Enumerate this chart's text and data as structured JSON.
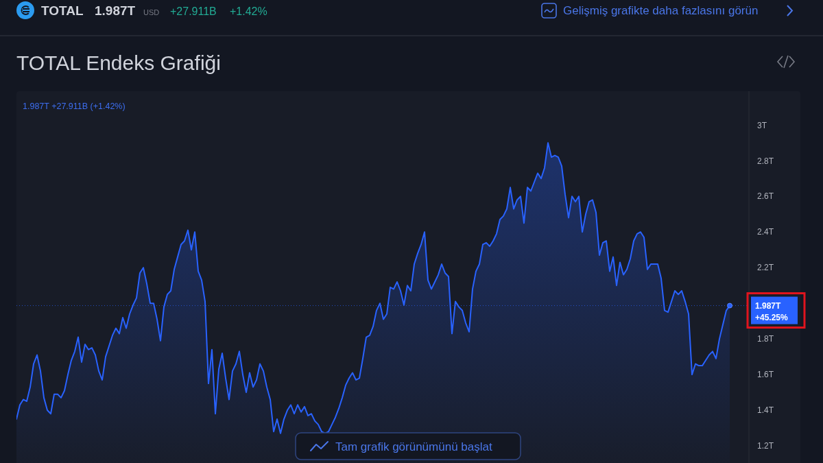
{
  "chart_data": {
    "type": "area",
    "title": "TOTAL Endeks Grafiği",
    "categories": [
      null,
      null,
      null,
      null,
      null,
      null,
      null,
      null,
      null,
      null,
      null,
      null,
      null,
      null,
      null,
      null,
      null,
      null,
      null,
      null,
      null,
      null,
      null,
      null,
      null,
      null,
      null,
      null,
      null,
      null,
      null,
      null,
      null,
      null,
      null,
      null,
      null,
      null,
      null,
      null,
      null,
      null,
      null,
      null,
      null,
      null,
      null,
      null,
      null,
      null,
      null,
      null,
      null,
      null,
      null,
      null,
      null,
      null,
      null,
      null,
      null,
      null,
      null,
      null,
      null,
      null,
      null,
      null,
      null,
      null,
      null,
      null,
      null,
      null,
      null,
      null,
      null,
      null,
      null,
      null,
      null,
      null,
      null,
      null,
      null,
      null,
      null,
      null,
      null,
      null,
      null,
      null,
      null,
      null,
      null,
      null,
      null,
      null,
      null,
      null,
      null,
      null,
      null,
      null,
      null,
      null,
      null,
      null,
      null,
      null,
      null,
      null,
      null,
      null,
      null,
      null,
      null,
      null,
      null,
      null,
      null,
      null,
      null,
      null,
      null,
      null,
      null,
      null,
      null,
      null,
      null,
      null,
      null,
      null,
      null,
      null,
      null,
      null,
      null,
      null,
      null,
      null,
      null,
      null,
      null,
      null,
      null,
      null,
      null,
      null,
      null,
      null,
      null,
      null,
      null,
      null,
      null,
      null,
      null,
      null,
      null,
      null,
      null,
      null,
      null,
      null,
      null,
      null,
      null,
      null,
      null,
      null,
      null,
      null,
      null,
      null,
      null,
      null,
      null,
      null,
      null,
      null,
      null,
      null,
      null,
      null,
      null,
      null,
      null,
      null,
      null,
      null,
      null,
      null,
      null,
      null,
      null,
      null,
      null,
      null,
      null,
      null,
      null,
      null,
      null,
      null,
      null,
      null,
      null
    ],
    "series": [
      {
        "color": "#2962ff",
        "values": [
          1.35,
          1.43,
          1.46,
          1.45,
          1.53,
          1.66,
          1.71,
          1.62,
          1.47,
          1.4,
          1.38,
          1.49,
          1.49,
          1.47,
          1.51,
          1.6,
          1.68,
          1.73,
          1.81,
          1.67,
          1.77,
          1.74,
          1.75,
          1.71,
          1.62,
          1.57,
          1.7,
          1.76,
          1.82,
          1.86,
          1.83,
          1.92,
          1.86,
          1.94,
          1.99,
          2.03,
          2.17,
          2.2,
          2.11,
          2.0,
          2.0,
          1.91,
          1.79,
          1.98,
          2.05,
          2.07,
          2.19,
          2.26,
          2.33,
          2.35,
          2.41,
          2.3,
          2.4,
          2.18,
          2.13,
          2.01,
          1.55,
          1.74,
          1.38,
          1.63,
          1.72,
          1.58,
          1.46,
          1.62,
          1.66,
          1.73,
          1.6,
          1.5,
          1.61,
          1.53,
          1.57,
          1.66,
          1.62,
          1.53,
          1.46,
          1.28,
          1.35,
          1.27,
          1.35,
          1.4,
          1.43,
          1.38,
          1.43,
          1.39,
          1.42,
          1.37,
          1.38,
          1.34,
          1.32,
          1.28,
          1.27,
          1.28,
          1.32,
          1.36,
          1.41,
          1.47,
          1.54,
          1.58,
          1.61,
          1.57,
          1.58,
          1.69,
          1.81,
          1.82,
          1.87,
          1.96,
          2.0,
          1.91,
          1.94,
          2.09,
          2.08,
          2.12,
          2.07,
          1.99,
          2.1,
          2.07,
          2.22,
          2.28,
          2.33,
          2.4,
          2.13,
          2.08,
          2.12,
          2.16,
          2.22,
          2.17,
          2.15,
          1.83,
          2.01,
          1.98,
          1.96,
          1.89,
          1.84,
          2.08,
          2.18,
          2.22,
          2.33,
          2.34,
          2.32,
          2.35,
          2.39,
          2.47,
          2.49,
          2.53,
          2.65,
          2.53,
          2.58,
          2.6,
          2.45,
          2.65,
          2.63,
          2.68,
          2.73,
          2.7,
          2.76,
          2.9,
          2.82,
          2.83,
          2.82,
          2.77,
          2.61,
          2.48,
          2.6,
          2.57,
          2.6,
          2.4,
          2.5,
          2.57,
          2.58,
          2.51,
          2.27,
          2.34,
          2.35,
          2.18,
          2.26,
          2.1,
          2.23,
          2.16,
          2.19,
          2.25,
          2.35,
          2.39,
          2.4,
          2.37,
          2.19,
          2.22,
          2.22,
          2.22,
          2.14,
          1.96,
          1.95,
          2.01,
          2.07,
          2.05,
          2.07,
          2.01,
          1.94,
          1.6,
          1.66,
          1.65,
          1.65,
          1.68,
          1.71,
          1.73,
          1.69,
          1.8,
          1.88,
          1.96,
          1.987
        ]
      },
      {
        "type": "scatter",
        "color": "#2962ff",
        "marker": "circle",
        "values": [
          null,
          null,
          null,
          null,
          null,
          null,
          null,
          null,
          null,
          null,
          null,
          null,
          null,
          null,
          null,
          null,
          null,
          null,
          null,
          null,
          null,
          null,
          null,
          null,
          null,
          null,
          null,
          null,
          null,
          null,
          null,
          null,
          null,
          null,
          null,
          null,
          null,
          null,
          null,
          null,
          null,
          null,
          null,
          null,
          null,
          null,
          null,
          null,
          null,
          null,
          null,
          null,
          null,
          null,
          null,
          null,
          null,
          null,
          null,
          null,
          null,
          null,
          null,
          null,
          null,
          null,
          null,
          null,
          null,
          null,
          null,
          null,
          null,
          null,
          null,
          null,
          null,
          null,
          null,
          null,
          null,
          null,
          null,
          null,
          null,
          null,
          null,
          null,
          null,
          null,
          null,
          null,
          null,
          null,
          null,
          null,
          null,
          null,
          null,
          null,
          null,
          null,
          null,
          null,
          null,
          null,
          null,
          null,
          null,
          null,
          null,
          null,
          null,
          null,
          null,
          null,
          null,
          null,
          null,
          null,
          null,
          null,
          null,
          null,
          null,
          null,
          null,
          null,
          null,
          null,
          null,
          null,
          null,
          null,
          null,
          null,
          null,
          null,
          null,
          null,
          null,
          null,
          null,
          null,
          null,
          null,
          null,
          null,
          null,
          null,
          null,
          null,
          null,
          null,
          null,
          null,
          null,
          null,
          null,
          null,
          null,
          null,
          null,
          null,
          null,
          null,
          null,
          null,
          null,
          null,
          null,
          null,
          null,
          null,
          null,
          null,
          null,
          null,
          null,
          null,
          null,
          null,
          null,
          null,
          null,
          null,
          null,
          null,
          null,
          null,
          null,
          null,
          null,
          null,
          null,
          null,
          null,
          null,
          null,
          null,
          null,
          null,
          null,
          null,
          null,
          null,
          null,
          null,
          1.987
        ]
      }
    ],
    "ylim": [
      1.1,
      3.19
    ],
    "yticks": [
      {
        "value": 1.2,
        "label": "1.2T"
      },
      {
        "value": 1.4,
        "label": "1.4T"
      },
      {
        "value": 1.6,
        "label": "1.6T"
      },
      {
        "value": 1.8,
        "label": "1.8T"
      },
      {
        "value": 2.2,
        "label": "2.2T"
      },
      {
        "value": 2.4,
        "label": "2.4T"
      },
      {
        "value": 2.6,
        "label": "2.6T"
      },
      {
        "value": 2.8,
        "label": "2.8T"
      },
      {
        "value": 3,
        "label": "3T"
      }
    ],
    "tick_labels": "y",
    "ref_lines": [
      {
        "axis": "y",
        "value": 1.987,
        "label": "1.987T\n+45.25%",
        "color": "#2962ff",
        "line_style": "dotted"
      }
    ],
    "annotations": [
      "TOTAL",
      "1.987T",
      "USD",
      "+27.911B",
      "+1.42%",
      "Gelişmiş grafikte daha fazlasını görün",
      "1.987T +27.911B (+1.42%)",
      "Tam grafik görünümünü başlat"
    ]
  }
}
